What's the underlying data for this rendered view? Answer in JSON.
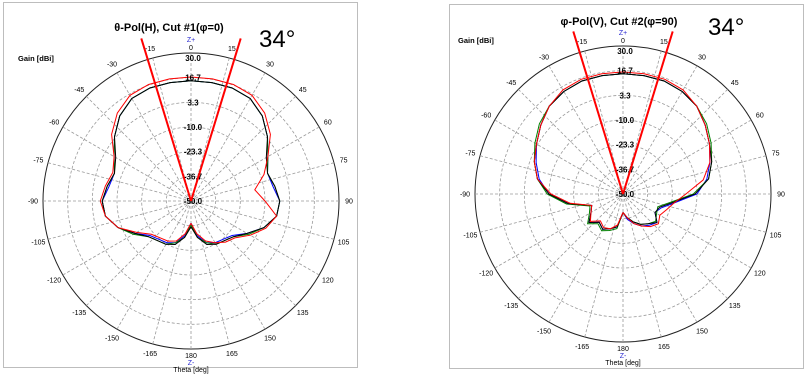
{
  "chart_data": [
    {
      "type": "polar",
      "title": "θ-Pol(H), Cut #1(φ=0)",
      "gain_label": "Gain [dBi]",
      "theta_label": "Theta [deg]",
      "z_top": "Z+",
      "z_bottom": "Z-",
      "annotation": "34°",
      "annotation_lines_deg": [
        -17,
        17
      ],
      "radial_labels": [
        "30.0",
        "16.7",
        "3.3",
        "-10.0",
        "-23.3",
        "-36.7",
        "-50.0"
      ],
      "rlim": [
        -50,
        30
      ],
      "angle_ticks": [
        "0",
        "15",
        "30",
        "45",
        "60",
        "75",
        "90",
        "105",
        "120",
        "135",
        "150",
        "165",
        "180",
        "-165",
        "-150",
        "-135",
        "-120",
        "-105",
        "-90",
        "-75",
        "-60",
        "-45",
        "-30",
        "-15"
      ],
      "grid": true,
      "series": [
        {
          "color": "#0000ff",
          "theta": [
            -180,
            -170,
            -160,
            -150,
            -140,
            -130,
            -120,
            -110,
            -100,
            -90,
            -80,
            -70,
            -60,
            -50,
            -40,
            -30,
            -20,
            -10,
            0,
            10,
            20,
            30,
            40,
            50,
            60,
            70,
            80,
            90,
            100,
            110,
            120,
            130,
            140,
            150,
            160,
            170,
            180
          ],
          "gain": [
            -38,
            -31,
            -26,
            -24,
            -23,
            -21,
            -15,
            -8,
            -3,
            -2,
            -5,
            -6,
            -2,
            4,
            10,
            14,
            15,
            15,
            15,
            15,
            15,
            14,
            10,
            4,
            -2,
            -6,
            -5,
            -2,
            -3,
            -8,
            -15,
            -21,
            -23,
            -24,
            -26,
            -31,
            -38
          ]
        },
        {
          "color": "#008000",
          "theta": [
            -180,
            -170,
            -160,
            -150,
            -140,
            -130,
            -120,
            -110,
            -100,
            -90,
            -80,
            -70,
            -60,
            -50,
            -40,
            -30,
            -20,
            -10,
            0,
            10,
            20,
            30,
            40,
            50,
            60,
            70,
            80,
            90,
            100,
            110,
            120,
            130,
            140,
            150,
            160,
            170,
            180
          ],
          "gain": [
            -37,
            -30,
            -26,
            -23,
            -22,
            -20,
            -14,
            -8,
            -3,
            -2,
            -4,
            -6,
            -2,
            4,
            10,
            14,
            15,
            15,
            15,
            15,
            15,
            14,
            10,
            4,
            -2,
            -6,
            -4,
            -2,
            -3,
            -8,
            -14,
            -20,
            -22,
            -23,
            -26,
            -30,
            -37
          ]
        },
        {
          "color": "#000000",
          "theta": [
            -180,
            -170,
            -160,
            -150,
            -140,
            -130,
            -120,
            -110,
            -100,
            -90,
            -80,
            -70,
            -60,
            -50,
            -40,
            -30,
            -20,
            -10,
            0,
            10,
            20,
            30,
            40,
            50,
            60,
            70,
            80,
            90,
            100,
            110,
            120,
            130,
            140,
            150,
            160,
            170,
            180
          ],
          "gain": [
            -36,
            -30,
            -25,
            -23,
            -22,
            -20,
            -15,
            -8,
            -3,
            -2,
            -4,
            -6,
            -3,
            4,
            10,
            14,
            15,
            15,
            15,
            15,
            15,
            14,
            10,
            4,
            -3,
            -6,
            -4,
            -2,
            -3,
            -8,
            -15,
            -20,
            -22,
            -23,
            -25,
            -30,
            -36
          ]
        },
        {
          "color": "#ff0000",
          "theta": [
            -180,
            -170,
            -160,
            -150,
            -140,
            -130,
            -120,
            -110,
            -100,
            -90,
            -80,
            -70,
            -60,
            -50,
            -40,
            -30,
            -20,
            -10,
            0,
            10,
            20,
            30,
            40,
            50,
            60,
            70,
            80,
            90,
            100,
            110,
            120,
            130,
            140,
            150,
            160,
            170,
            180
          ],
          "gain": [
            -38,
            -32,
            -27,
            -25,
            -24,
            -22,
            -16,
            -8,
            -3,
            -1,
            -3,
            -5,
            -2,
            6,
            12,
            16,
            17,
            17,
            17,
            17,
            17,
            16,
            12,
            6,
            -2,
            -8,
            -15,
            -10,
            -3,
            -7,
            -13,
            -19,
            -21,
            -24,
            -27,
            -32,
            -38
          ]
        }
      ]
    },
    {
      "type": "polar",
      "title": "φ-Pol(V), Cut #2(φ=90)",
      "gain_label": "Gain [dBi]",
      "theta_label": "Theta [deg]",
      "z_top": "Z+",
      "z_bottom": "Z-",
      "annotation": "34°",
      "annotation_lines_deg": [
        -17,
        17
      ],
      "radial_labels": [
        "30.0",
        "16.7",
        "3.3",
        "-10.0",
        "-23.3",
        "-36.7",
        "-50.0"
      ],
      "rlim": [
        -50,
        30
      ],
      "angle_ticks": [
        "0",
        "15",
        "30",
        "45",
        "60",
        "75",
        "90",
        "105",
        "120",
        "135",
        "150",
        "165",
        "180",
        "-165",
        "-150",
        "-135",
        "-120",
        "-105",
        "-90",
        "-75",
        "-60",
        "-45",
        "-30",
        "-15"
      ],
      "grid": true,
      "series": [
        {
          "color": "#0000ff",
          "theta": [
            -180,
            -170,
            -160,
            -150,
            -140,
            -130,
            -120,
            -110,
            -100,
            -90,
            -80,
            -70,
            -60,
            -50,
            -40,
            -30,
            -20,
            -10,
            0,
            10,
            20,
            30,
            40,
            50,
            60,
            70,
            80,
            90,
            100,
            110,
            120,
            130,
            140,
            150,
            160,
            170,
            180
          ],
          "gain": [
            -40,
            -32,
            -30,
            -28,
            -30,
            -26,
            -30,
            -32,
            -20,
            -10,
            -4,
            0,
            4,
            8,
            12,
            14,
            15,
            15,
            15,
            15,
            15,
            14,
            12,
            8,
            4,
            0,
            -4,
            -10,
            -22,
            -28,
            -30,
            -26,
            -28,
            -30,
            -33,
            -36,
            -40
          ]
        },
        {
          "color": "#008000",
          "theta": [
            -180,
            -170,
            -160,
            -150,
            -140,
            -130,
            -120,
            -110,
            -100,
            -90,
            -80,
            -70,
            -60,
            -50,
            -40,
            -30,
            -20,
            -10,
            0,
            10,
            20,
            30,
            40,
            50,
            60,
            70,
            80,
            90,
            100,
            110,
            120,
            130,
            140,
            150,
            160,
            170,
            180
          ],
          "gain": [
            -40,
            -31,
            -29,
            -27,
            -29,
            -25,
            -29,
            -31,
            -19,
            -9,
            -3,
            1,
            5,
            9,
            12,
            14,
            15,
            15,
            15,
            15,
            15,
            14,
            12,
            9,
            5,
            1,
            -3,
            -12,
            -24,
            -30,
            -29,
            -27,
            -29,
            -31,
            -34,
            -37,
            -40
          ]
        },
        {
          "color": "#000000",
          "theta": [
            -180,
            -170,
            -160,
            -150,
            -140,
            -130,
            -120,
            -110,
            -100,
            -90,
            -80,
            -70,
            -60,
            -50,
            -40,
            -30,
            -20,
            -10,
            0,
            10,
            20,
            30,
            40,
            50,
            60,
            70,
            80,
            90,
            100,
            110,
            120,
            130,
            140,
            150,
            160,
            170,
            180
          ],
          "gain": [
            -40,
            -32,
            -30,
            -28,
            -30,
            -26,
            -30,
            -32,
            -20,
            -10,
            -3,
            1,
            4,
            8,
            12,
            14,
            15,
            15,
            15,
            15,
            15,
            14,
            12,
            8,
            4,
            1,
            -3,
            -11,
            -23,
            -29,
            -30,
            -26,
            -29,
            -31,
            -34,
            -37,
            -40
          ]
        },
        {
          "color": "#ff0000",
          "theta": [
            -180,
            -170,
            -160,
            -150,
            -140,
            -130,
            -120,
            -110,
            -100,
            -90,
            -80,
            -70,
            -60,
            -50,
            -40,
            -30,
            -20,
            -10,
            0,
            10,
            20,
            30,
            40,
            50,
            60,
            70,
            80,
            90,
            100,
            110,
            120,
            130,
            140,
            150,
            160,
            170,
            180
          ],
          "gain": [
            -40,
            -33,
            -30,
            -29,
            -31,
            -27,
            -30,
            -32,
            -21,
            -11,
            -3,
            1,
            4,
            8,
            12,
            15,
            16,
            16,
            16,
            16,
            16,
            15,
            12,
            8,
            4,
            0,
            -6,
            -16,
            -22,
            -25,
            -27,
            -25,
            -27,
            -30,
            -33,
            -37,
            -40
          ]
        }
      ]
    }
  ]
}
